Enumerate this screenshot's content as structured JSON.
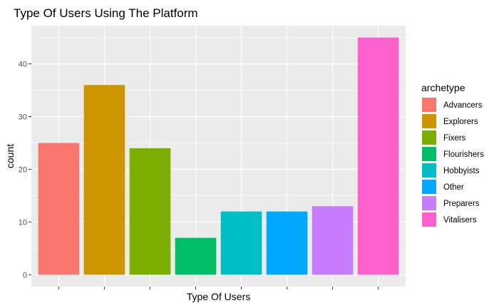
{
  "chart_data": {
    "type": "bar",
    "title": "Type Of Users Using The Platform",
    "xlabel": "Type Of Users",
    "ylabel": "count",
    "categories": [
      "Advancers",
      "Explorers",
      "Fixers",
      "Flourishers",
      "Hobbyists",
      "Other",
      "Preparers",
      "Vitalisers"
    ],
    "values": [
      25,
      36,
      24,
      7,
      12,
      12,
      13,
      45
    ],
    "colors": [
      "#F8766D",
      "#CD9600",
      "#7CAE00",
      "#00BE67",
      "#00BFC4",
      "#00A9FF",
      "#C77CFF",
      "#FF61CC"
    ],
    "y_ticks": [
      0,
      10,
      20,
      30,
      40
    ],
    "ylim": [
      -2.25,
      47.25
    ],
    "grid": true,
    "legend": {
      "title": "archetype",
      "position": "right"
    }
  },
  "colors": {
    "panel_background": "#EBEBEB",
    "grid_major": "#FFFFFF",
    "tick": "#333333"
  }
}
